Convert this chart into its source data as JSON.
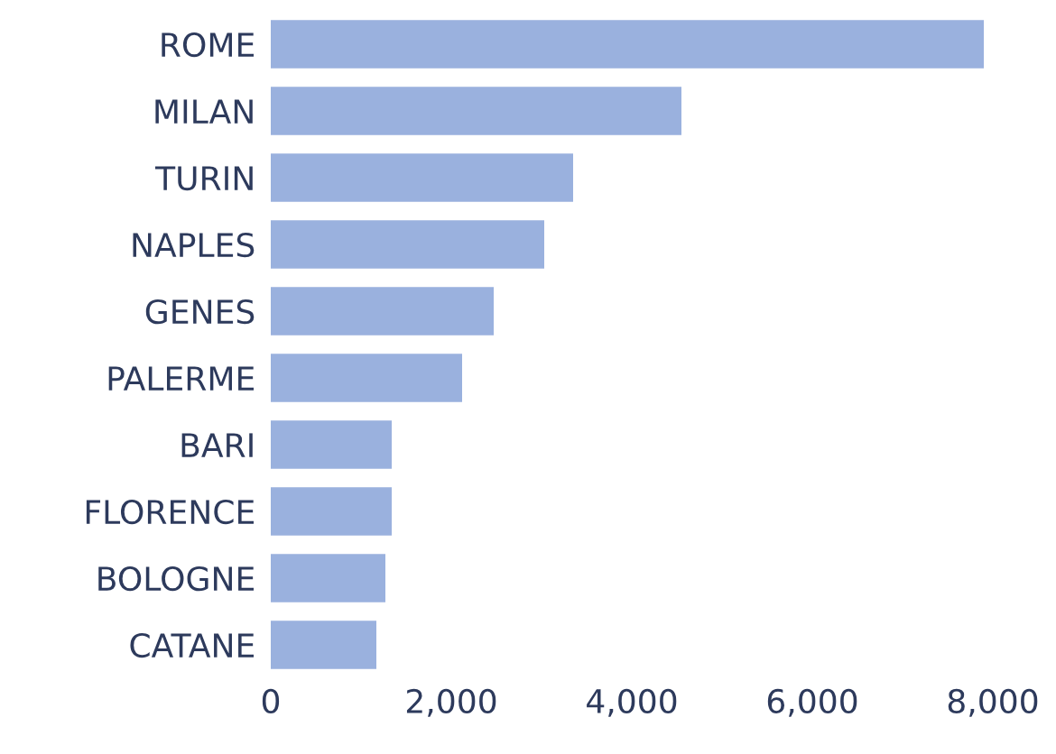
{
  "chart_data": {
    "type": "bar",
    "orientation": "horizontal",
    "categories": [
      "ROME",
      "MILAN",
      "TURIN",
      "NAPLES",
      "GENES",
      "PALERME",
      "BARI",
      "FLORENCE",
      "BOLOGNE",
      "CATANE"
    ],
    "values": [
      7900,
      4550,
      3350,
      3030,
      2470,
      2120,
      1340,
      1340,
      1270,
      1170
    ],
    "color": "#9ab1de",
    "xlim": [
      0,
      8000
    ],
    "xticks": [
      0,
      {
        "value": 2000,
        "label": "2,000"
      },
      {
        "value": 4000,
        "label": "4,000"
      },
      {
        "value": 6000,
        "label": "6,000"
      },
      {
        "value": 8000,
        "label": "8,000"
      }
    ],
    "grid": false,
    "legend": false
  }
}
